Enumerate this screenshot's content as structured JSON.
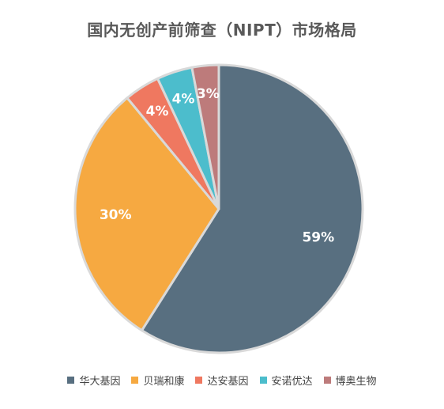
{
  "chart_data": {
    "type": "pie",
    "title": "国内无创产前筛查（NIPT）市场格局",
    "categories": [
      "华大基因",
      "贝瑞和康",
      "达安基因",
      "安诺优达",
      "博奥生物"
    ],
    "values": [
      59,
      30,
      4,
      4,
      3
    ],
    "labels": [
      "59%",
      "30%",
      "4%",
      "4%",
      "3%"
    ],
    "colors": [
      "#586f80",
      "#f6a941",
      "#ef7860",
      "#4cbdcc",
      "#bd7b7b"
    ],
    "legend_position": "bottom",
    "start_angle": "top",
    "direction": "clockwise"
  }
}
